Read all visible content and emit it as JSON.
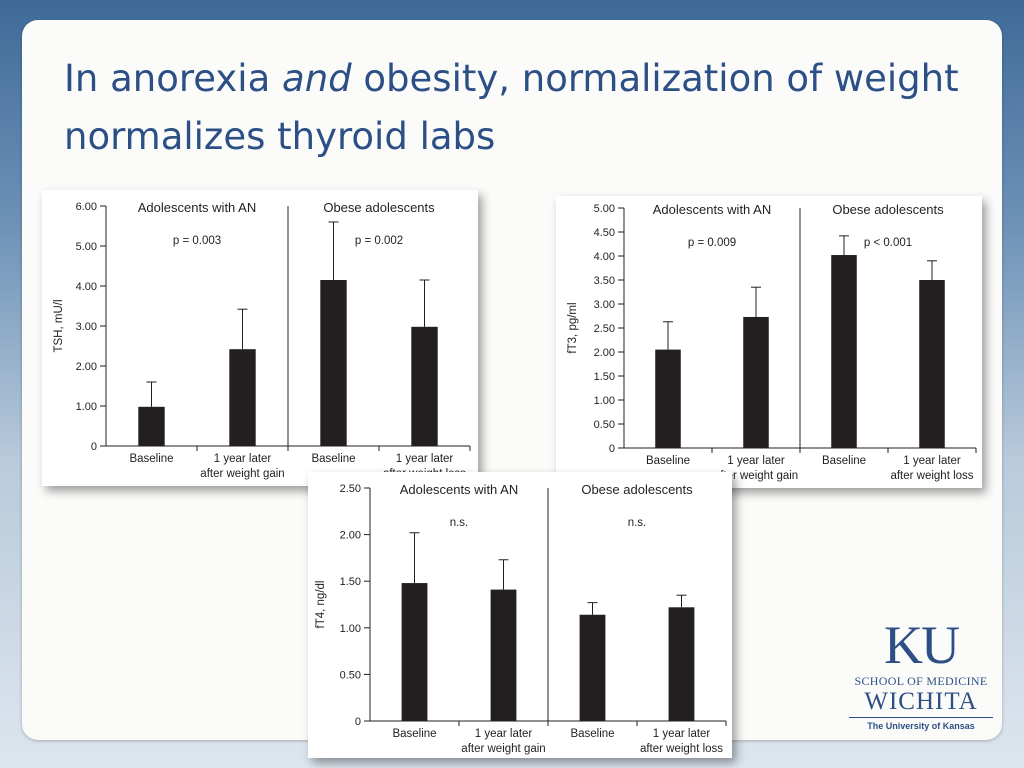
{
  "slide": {
    "title_part1": "In anorexia ",
    "title_emph": "and",
    "title_part2": " obesity, normalization of weight normalizes thyroid labs"
  },
  "logo": {
    "mark": "KU",
    "school": "SCHOOL OF MEDICINE",
    "city": "WICHITA",
    "university": "The University of Kansas"
  },
  "chart_data": [
    {
      "type": "bar",
      "ylabel": "TSH, mU/l",
      "ylim": [
        0,
        6
      ],
      "yticks": [
        "0",
        "1.00",
        "2.00",
        "3.00",
        "4.00",
        "5.00",
        "6.00"
      ],
      "groups": [
        {
          "name": "Adolescents with AN",
          "p": "p = 0.003"
        },
        {
          "name": "Obese adolescents",
          "p": "p = 0.002"
        }
      ],
      "categories": [
        [
          "Baseline"
        ],
        [
          "1 year later",
          "after weight gain"
        ],
        [
          "Baseline"
        ],
        [
          "1 year later",
          "after weight loss"
        ]
      ],
      "values": [
        0.98,
        2.42,
        4.15,
        2.98
      ],
      "errors": [
        0.62,
        1.0,
        1.45,
        1.17
      ]
    },
    {
      "type": "bar",
      "ylabel": "fT3, pg/ml",
      "ylim": [
        0,
        5
      ],
      "yticks": [
        "0",
        "0.50",
        "1.00",
        "1.50",
        "2.00",
        "2.50",
        "3.00",
        "3.50",
        "4.00",
        "4.50",
        "5.00"
      ],
      "groups": [
        {
          "name": "Adolescents with AN",
          "p": "p = 0.009"
        },
        {
          "name": "Obese adolescents",
          "p": "p < 0.001"
        }
      ],
      "categories": [
        [
          "Baseline"
        ],
        [
          "1 year later",
          "after weight gain"
        ],
        [
          "Baseline"
        ],
        [
          "1 year later",
          "after weight loss"
        ]
      ],
      "values": [
        2.05,
        2.73,
        4.02,
        3.5
      ],
      "errors": [
        0.58,
        0.62,
        0.4,
        0.4
      ]
    },
    {
      "type": "bar",
      "ylabel": "fT4, ng/dl",
      "ylim": [
        0,
        2.5
      ],
      "yticks": [
        "0",
        "0.50",
        "1.00",
        "1.50",
        "2.00",
        "2.50"
      ],
      "groups": [
        {
          "name": "Adolescents with AN",
          "p": "n.s."
        },
        {
          "name": "Obese adolescents",
          "p": "n.s."
        }
      ],
      "categories": [
        [
          "Baseline"
        ],
        [
          "1 year later",
          "after weight gain"
        ],
        [
          "Baseline"
        ],
        [
          "1 year later",
          "after weight loss"
        ]
      ],
      "values": [
        1.48,
        1.41,
        1.14,
        1.22
      ],
      "errors": [
        0.54,
        0.32,
        0.13,
        0.13
      ]
    }
  ],
  "colors": {
    "title": "#2c4f86",
    "bar": "#231f20",
    "logo": "#2d4f86"
  }
}
